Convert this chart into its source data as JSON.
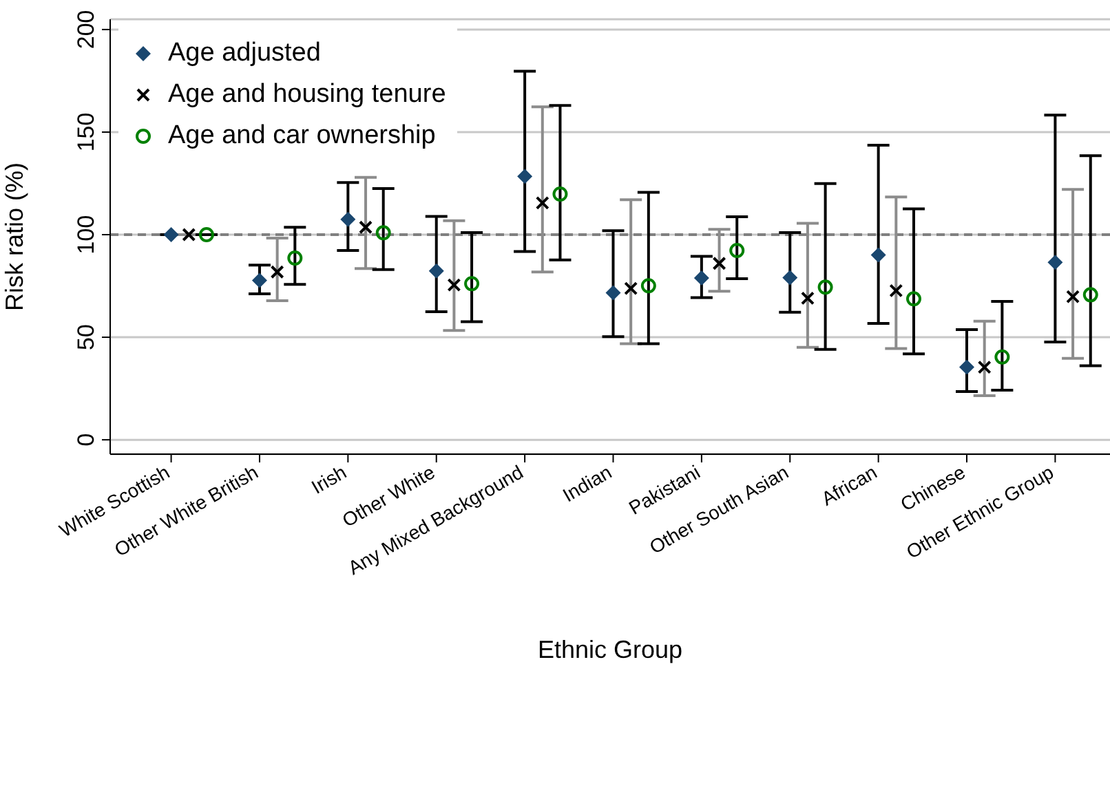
{
  "chart_data": {
    "type": "scatter",
    "xlabel": "Ethnic Group",
    "ylabel": "Risk ratio (%)",
    "categories": [
      "White Scottish",
      "Other White British",
      "Irish",
      "Other White",
      "Any Mixed Background",
      "Indian",
      "Pakistani",
      "Other South Asian",
      "African",
      "Chinese",
      "Other Ethnic Group"
    ],
    "ylim": [
      -7,
      205
    ],
    "yticks": [
      0,
      50,
      100,
      150,
      200
    ],
    "grid": "y",
    "legend": "top left",
    "ref_lines": [
      {
        "axis": "y",
        "value": 100,
        "color": "#808080",
        "line_style": "dashed"
      }
    ],
    "series": [
      {
        "name": "Age adjusted",
        "color": "#1a476f",
        "marker": "diamond",
        "values": [
          100,
          77.7,
          107.5,
          82.3,
          128.4,
          71.7,
          78.9,
          79.0,
          90.1,
          35.4,
          86.5
        ],
        "errors": [
          null,
          [
            71.2,
            85.2
          ],
          [
            92.3,
            125.4
          ],
          [
            62.4,
            108.9
          ],
          [
            91.8,
            179.7
          ],
          [
            50.3,
            101.9
          ],
          [
            69.3,
            89.4
          ],
          [
            62.2,
            101.0
          ],
          [
            56.7,
            143.6
          ],
          [
            23.5,
            53.7
          ],
          [
            47.7,
            158.3
          ]
        ]
      },
      {
        "name": "Age and housing tenure",
        "color": "#000000",
        "marker": "cross",
        "values": [
          100,
          81.8,
          103.6,
          75.5,
          115.5,
          73.8,
          86.0,
          69.0,
          72.7,
          35.4,
          69.8
        ],
        "errors": [
          null,
          [
            67.8,
            98.3
          ],
          [
            83.5,
            127.9
          ],
          [
            53.3,
            106.8
          ],
          [
            81.8,
            162.3
          ],
          [
            46.8,
            117.0
          ],
          [
            72.4,
            102.6
          ],
          [
            45.1,
            105.5
          ],
          [
            44.5,
            118.4
          ],
          [
            21.5,
            57.8
          ],
          [
            39.7,
            122.1
          ]
        ]
      },
      {
        "name": "Age and car ownership",
        "color": "#008000",
        "marker": "circle",
        "values": [
          100,
          88.6,
          100.9,
          76.1,
          119.8,
          75.1,
          92.3,
          74.4,
          68.7,
          40.4,
          70.7
        ],
        "errors": [
          null,
          [
            75.8,
            103.6
          ],
          [
            83.0,
            122.5
          ],
          [
            57.6,
            101.0
          ],
          [
            87.7,
            163.0
          ],
          [
            46.8,
            120.6
          ],
          [
            78.5,
            108.7
          ],
          [
            44.1,
            124.9
          ],
          [
            41.9,
            112.6
          ],
          [
            24.2,
            67.5
          ],
          [
            36.1,
            138.5
          ]
        ]
      }
    ]
  }
}
